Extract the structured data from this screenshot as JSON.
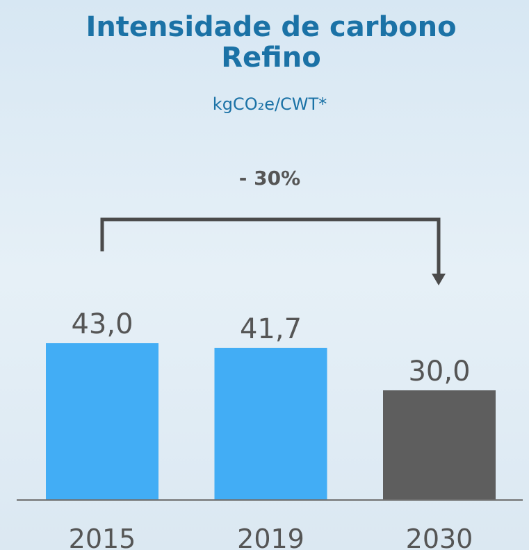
{
  "chart_data": {
    "type": "bar",
    "title": [
      "Intensidade de carbono",
      "Refino"
    ],
    "subtitle": "kgCO₂e/CWT*",
    "annotation": "- 30%",
    "categories": [
      "2015",
      "2019",
      "2030"
    ],
    "values": [
      43.0,
      41.7,
      30.0
    ],
    "value_labels": [
      "43,0",
      "41,7",
      "30,0"
    ],
    "colors": [
      "#42adf5",
      "#42adf5",
      "#5e5e5e"
    ]
  }
}
